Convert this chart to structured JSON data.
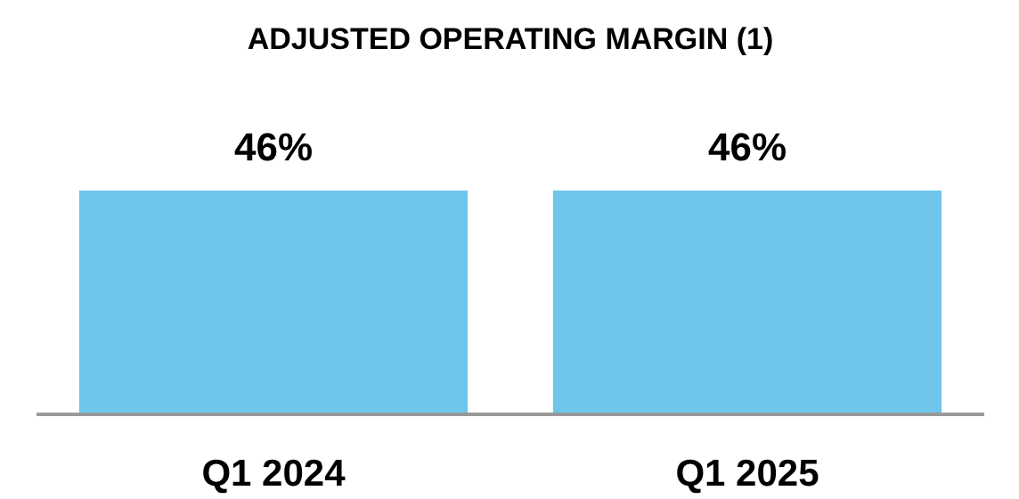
{
  "chart_data": {
    "type": "bar",
    "title": "ADJUSTED OPERATING MARGIN (1)",
    "categories": [
      "Q1 2024",
      "Q1 2025"
    ],
    "values": [
      46,
      46
    ],
    "color": "#6ec6ea",
    "data_labels": true,
    "value_labels": [
      "46%",
      "46%"
    ],
    "grid": false
  }
}
